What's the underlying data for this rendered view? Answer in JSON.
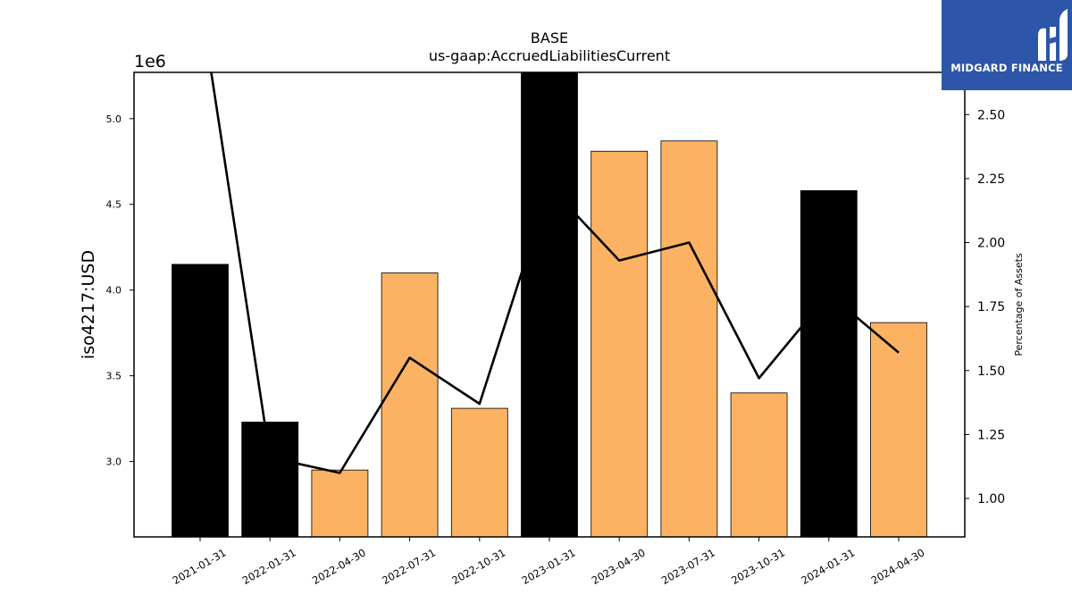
{
  "chart_data": {
    "type": "bar",
    "title": "BASE",
    "subtitle": "us-gaap:AccruedLiabilitiesCurrent",
    "ylabel": "iso4217:USD",
    "y_offset_label": "1e6",
    "y2label": "Percentage of Assets",
    "categories": [
      "2021-01-31",
      "2022-01-31",
      "2022-04-30",
      "2022-07-31",
      "2022-10-31",
      "2023-01-31",
      "2023-04-30",
      "2023-07-31",
      "2023-10-31",
      "2024-01-31",
      "2024-04-30"
    ],
    "series": [
      {
        "type": "bar",
        "values": [
          4.15,
          3.23,
          2.95,
          4.1,
          3.31,
          5.27,
          4.81,
          4.87,
          3.4,
          4.58,
          3.81
        ],
        "colors": [
          "#000000",
          "#000000",
          "#fbb262",
          "#fbb262",
          "#fbb262",
          "#000000",
          "#fbb262",
          "#fbb262",
          "#fbb262",
          "#000000",
          "#fbb262"
        ]
      },
      {
        "type": "line",
        "axis": "right",
        "color": "#000000",
        "values": [
          2.95,
          1.16,
          1.1,
          1.55,
          1.37,
          2.22,
          1.93,
          2.0,
          1.47,
          1.8,
          1.57
        ]
      }
    ],
    "ylim": [
      2.56,
      5.27
    ],
    "y_ticks": [
      "3.0",
      "3.5",
      "4.0",
      "4.5",
      "5.0"
    ],
    "y2lim": [
      0.85,
      2.665
    ],
    "y2_ticks": [
      "1.00",
      "1.25",
      "1.50",
      "1.75",
      "2.00",
      "2.25",
      "2.50"
    ],
    "grid": false,
    "legend": "none"
  },
  "logo": {
    "text": "MIDGARD FINANCE",
    "background": "#2d56a8"
  }
}
